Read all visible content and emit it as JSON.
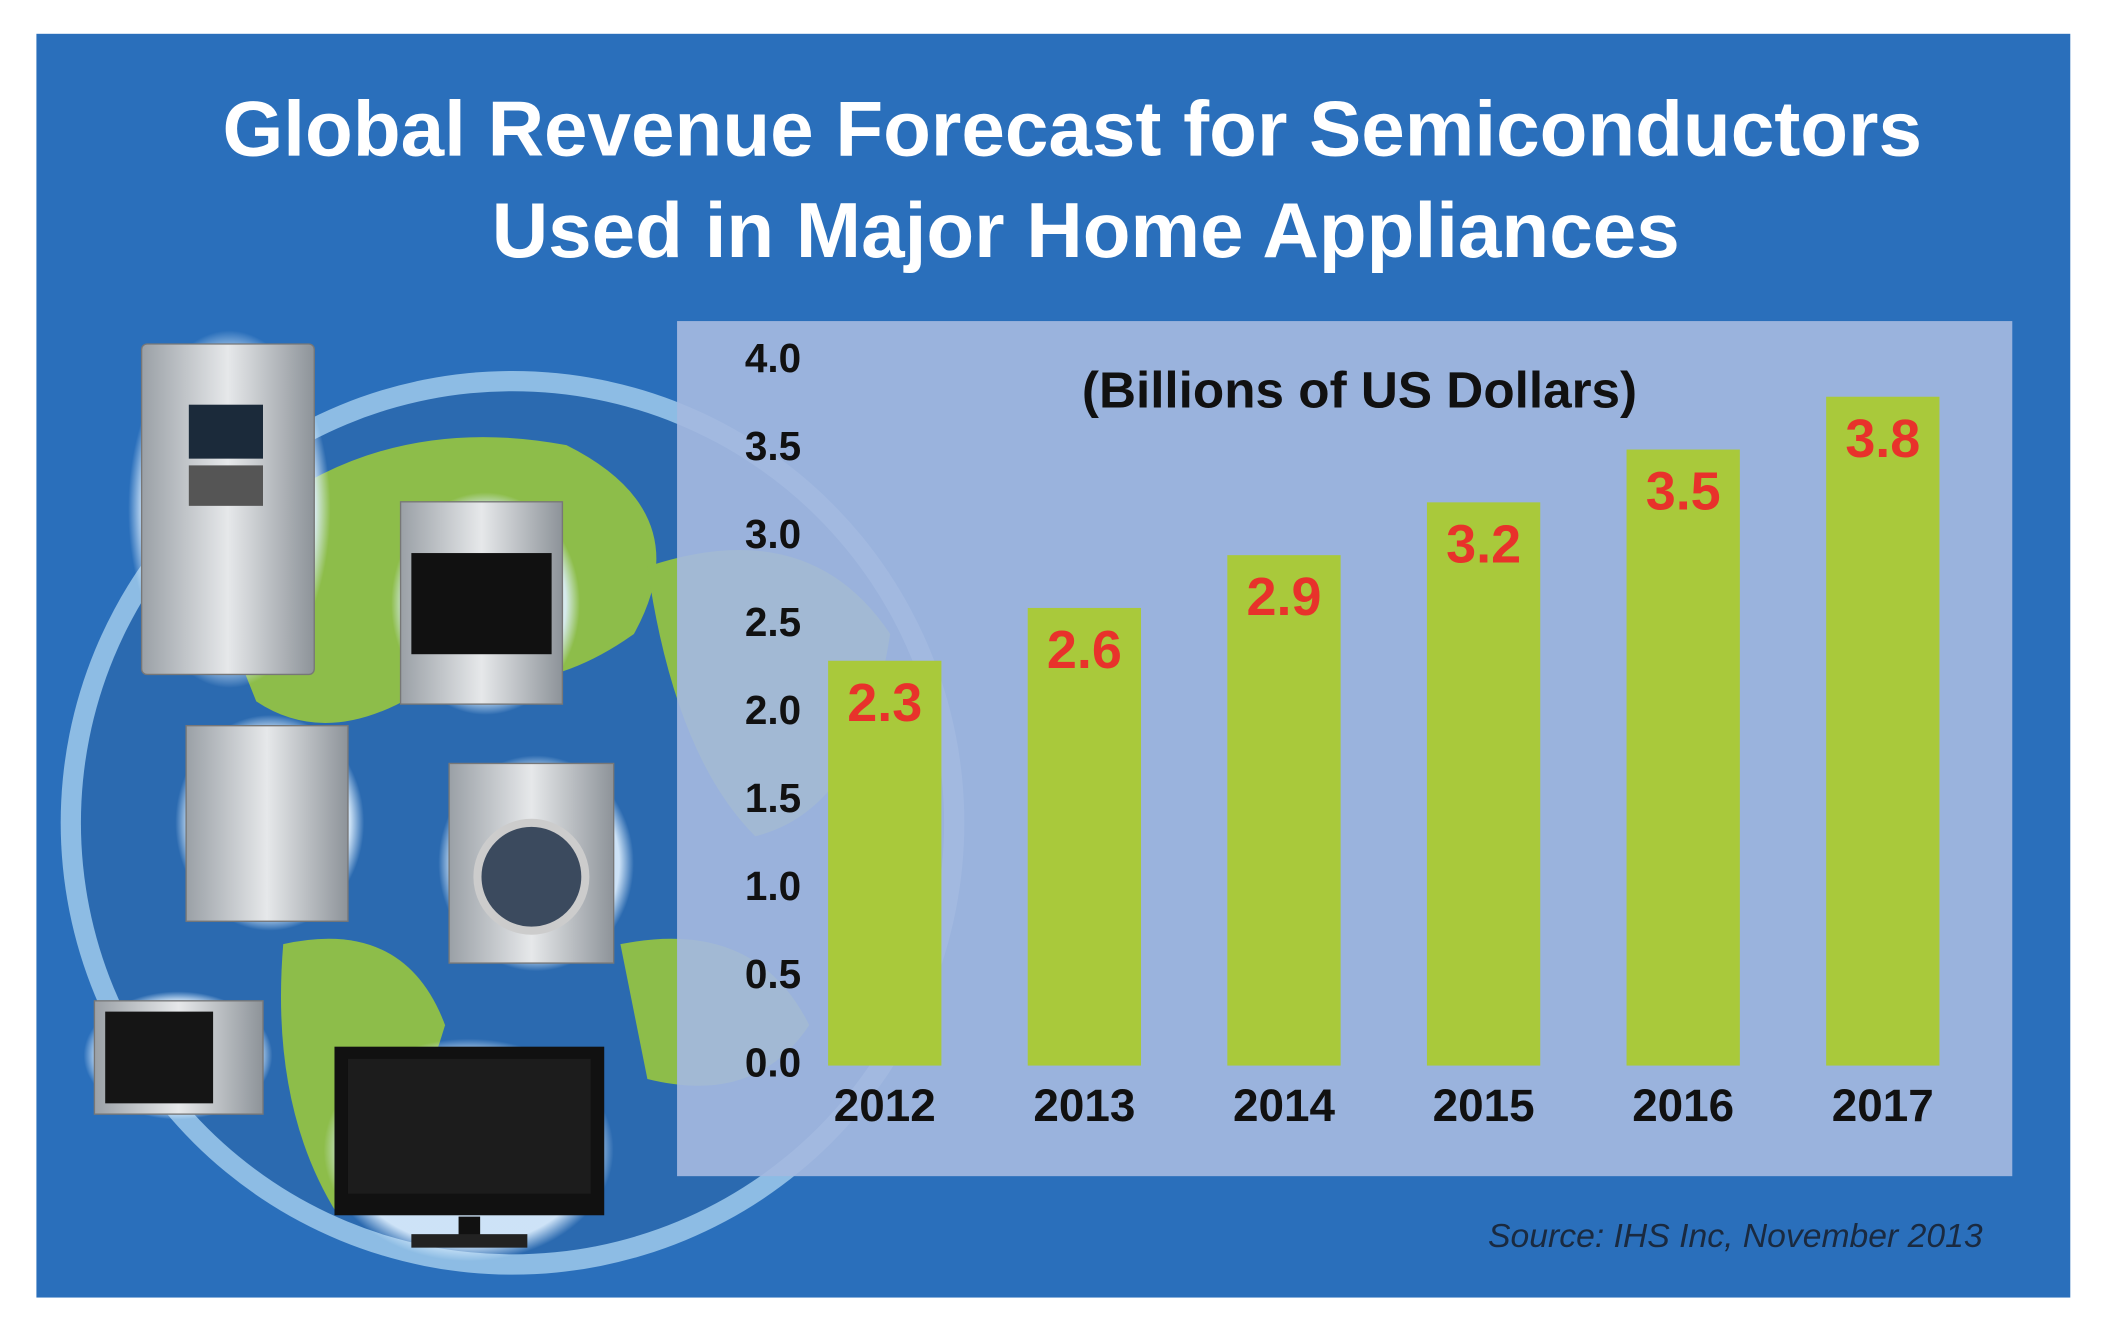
{
  "chart_data": {
    "type": "bar",
    "title": [
      "Global Revenue Forecast for Semiconductors",
      "Used in Major Home Appliances"
    ],
    "subtitle": "(Billions of US Dollars)",
    "source": "Source: IHS Inc, November 2013",
    "categories": [
      "2012",
      "2013",
      "2014",
      "2015",
      "2016",
      "2017"
    ],
    "values": [
      2.3,
      2.6,
      2.9,
      3.2,
      3.5,
      3.8
    ],
    "color": "#a9c93b",
    "value_label_color": "#e8322b",
    "ylim": [
      0,
      4
    ],
    "yticks": [
      {
        "value": 0,
        "label": "0.0"
      },
      0.5,
      {
        "value": 1,
        "label": "1.0"
      },
      1.5,
      {
        "value": 2,
        "label": "2.0"
      },
      2.5,
      {
        "value": 3,
        "label": "3.0"
      },
      3.5,
      {
        "value": 4,
        "label": "4.0"
      }
    ],
    "grid": false
  }
}
